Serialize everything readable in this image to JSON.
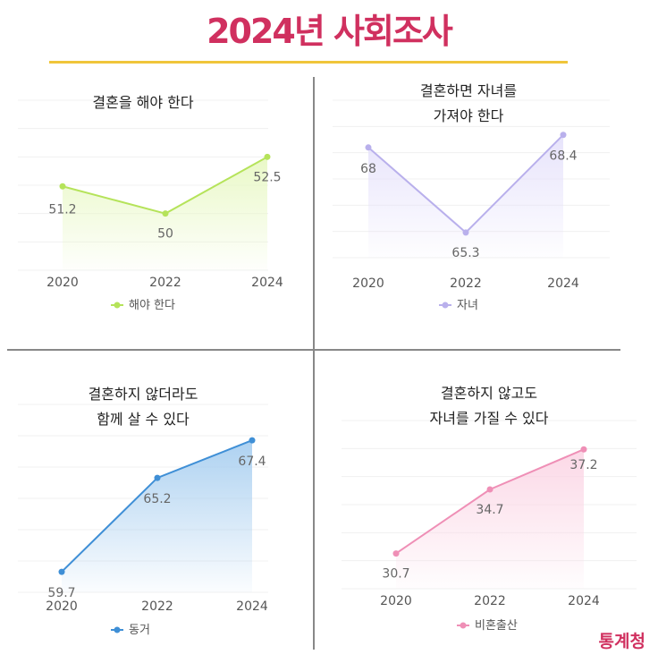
{
  "header": {
    "title": "2024년 사회조사",
    "source": "통계청"
  },
  "chart_data": [
    {
      "type": "area",
      "title_lines": [
        "결혼을 해야 한다"
      ],
      "x": [
        "2020",
        "2022",
        "2024"
      ],
      "series": [
        {
          "name": "해야 한다",
          "values": [
            51.2,
            50,
            52.5
          ]
        }
      ],
      "ylim": [
        47.5,
        55
      ],
      "color": "#b5e35a",
      "fill": "#e8f8c4"
    },
    {
      "type": "area",
      "title_lines": [
        "결혼하면 자녀를",
        "가져야 한다"
      ],
      "x": [
        "2020",
        "2022",
        "2024"
      ],
      "series": [
        {
          "name": "자녀",
          "values": [
            68,
            65.3,
            68.4
          ]
        }
      ],
      "ylim": [
        64.5,
        69.5
      ],
      "color": "#b9b0ec",
      "fill": "#e6e2fb"
    },
    {
      "type": "area",
      "title_lines": [
        "결혼하지 않더라도",
        "함께 살 수 있다"
      ],
      "x": [
        "2020",
        "2022",
        "2024"
      ],
      "series": [
        {
          "name": "동거",
          "values": [
            59.7,
            65.2,
            67.4
          ]
        }
      ],
      "ylim": [
        58.5,
        69.5
      ],
      "color": "#3f8fd6",
      "fill": "#a9cff0"
    },
    {
      "type": "area",
      "title_lines": [
        "결혼하지 않고도",
        "자녀를 가질 수 있다"
      ],
      "x": [
        "2020",
        "2022",
        "2024"
      ],
      "series": [
        {
          "name": "비혼출산",
          "values": [
            30.7,
            34.7,
            37.2
          ]
        }
      ],
      "ylim": [
        28.5,
        39
      ],
      "color": "#ef8fb6",
      "fill": "#fbd6e5"
    }
  ]
}
